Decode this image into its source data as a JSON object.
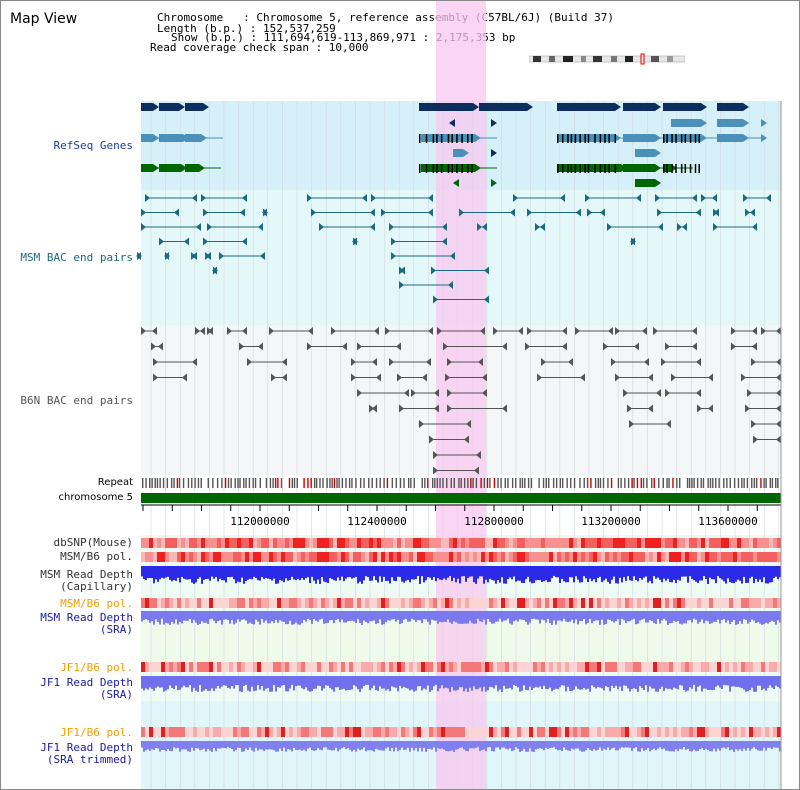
{
  "title": "Map View",
  "info": {
    "chromosome_line": "Chromosome   : Chromosome 5, reference assembly (C57BL/6J) (Build 37)",
    "length_line": "Length (b.p.) : 152,537,259",
    "show_line": "Show (b.p.) : 111,694,619-113,869,971 : 2,175,353 bp",
    "coverage_line": "Read coverage check span : 10,000"
  },
  "tracks": {
    "refseq": "RefSeq Genes",
    "msm_bac": "MSM BAC end pairs",
    "b6n_bac": "B6N BAC end pairs",
    "repeat": "Repeat",
    "chromosome": "chromosome 5",
    "dbsnp": "dbSNP(Mouse)",
    "msm_b6_pol_1": "MSM/B6 pol.",
    "msm_read_depth_cap_1": "MSM Read Depth",
    "msm_read_depth_cap_2": "(Capillary)",
    "msm_b6_pol_2": "MSM/B6 pol.",
    "msm_read_depth_sra_1": "MSM Read Depth",
    "msm_read_depth_sra_2": "(SRA)",
    "jf1_b6_pol_1": "JF1/B6 pol.",
    "jf1_read_depth_sra_1": "JF1 Read Depth",
    "jf1_read_depth_sra_2": "(SRA)",
    "jf1_b6_pol_2": "JF1/B6 pol.",
    "jf1_read_depth_trim_1": "JF1 Read Depth",
    "jf1_read_depth_trim_2": "(SRA trimmed)"
  },
  "axis": {
    "ticks": [
      "112000000",
      "112400000",
      "112800000",
      "113200000",
      "113600000"
    ]
  },
  "colors": {
    "refseq_label": "#1a3f9a",
    "msm_label": "#1d6a80",
    "b6n_label": "#555555",
    "orange_label": "#f0a000",
    "blue_label": "#1a1aa8",
    "dark_label": "#333333",
    "highlight": "#f8c8f0",
    "gene_dark": "#0c2d5e",
    "gene_light": "#4a90b8",
    "gene_green": "#006600",
    "chrom_green": "#006600"
  }
}
